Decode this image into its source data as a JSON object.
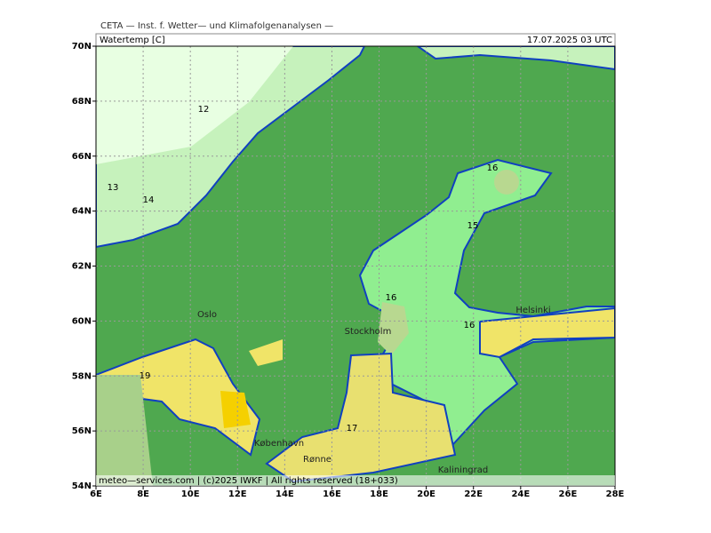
{
  "header": "CETA — Inst. f. Wetter— und Klimafolgenanalysen —",
  "variable": "Watertemp [C]",
  "datetime": "17.07.2025 03 UTC",
  "lat_labels": [
    "70N",
    "68N",
    "66N",
    "64N",
    "62N",
    "60N",
    "58N",
    "56N",
    "54N"
  ],
  "lon_labels": [
    "6E",
    "8E",
    "10E",
    "12E",
    "14E",
    "16E",
    "18E",
    "20E",
    "22E",
    "24E",
    "26E",
    "28E"
  ],
  "places": [
    "Oslo",
    "Stockholm",
    "Helsinki",
    "København",
    "Rønne",
    "Kaliningrad"
  ],
  "contour_labels": [
    12,
    13,
    14,
    16,
    15,
    16,
    16,
    19,
    17
  ],
  "footer": "meteo—services.com | (c)2025 IWKF | All rights reserved (18+033)"
}
